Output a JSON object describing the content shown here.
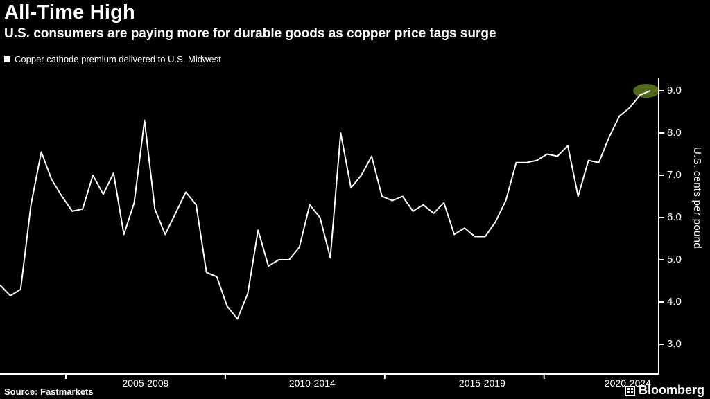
{
  "header": {
    "title": "All-Time High",
    "subtitle": "U.S. consumers are paying more for durable goods as copper price tags surge"
  },
  "legend": {
    "label": "Copper cathode premium delivered to U.S. Midwest"
  },
  "footer": {
    "source": "Source:  Fastmarkets",
    "brand": "Bloomberg"
  },
  "chart_data": {
    "type": "line",
    "title": "All-Time High",
    "subtitle": "U.S. consumers are paying more for durable goods as copper price tags surge",
    "ylabel": "U.S. cents per pound",
    "ylim": [
      3.0,
      9.0
    ],
    "grid": false,
    "legend_position": "top-left",
    "line_color": "#ffffff",
    "background": "#000000",
    "y_ticks": [
      {
        "label": "9.0",
        "value": 9.0
      },
      {
        "label": "8.0",
        "value": 8.0
      },
      {
        "label": "7.0",
        "value": 7.0
      },
      {
        "label": "6.0",
        "value": 6.0
      },
      {
        "label": "5.0",
        "value": 5.0
      },
      {
        "label": "4.0",
        "value": 4.0
      },
      {
        "label": "3.0",
        "value": 3.0
      }
    ],
    "x_ticks": [
      {
        "label": "2005-2009",
        "pos": 0.221
      },
      {
        "label": "2010-2014",
        "pos": 0.474
      },
      {
        "label": "2015-2019",
        "pos": 0.732
      },
      {
        "label": "2020-2024",
        "pos": 0.953
      }
    ],
    "x_boundary_ticks_pos": [
      0.1,
      0.342,
      0.584,
      0.826
    ],
    "series": [
      {
        "name": "Copper cathode premium delivered to U.S. Midwest",
        "values": [
          4.4,
          4.15,
          4.3,
          6.3,
          7.55,
          6.9,
          6.5,
          6.15,
          6.2,
          7.0,
          6.55,
          7.05,
          5.6,
          6.35,
          8.3,
          6.2,
          5.6,
          6.1,
          6.6,
          6.3,
          4.7,
          4.6,
          3.9,
          3.6,
          4.2,
          5.7,
          4.85,
          5.0,
          5.0,
          5.3,
          6.3,
          6.0,
          5.05,
          8.0,
          6.7,
          7.0,
          7.45,
          6.5,
          6.4,
          6.5,
          6.15,
          6.3,
          6.1,
          6.35,
          5.6,
          5.75,
          5.55,
          5.55,
          5.9,
          6.4,
          7.3,
          7.3,
          7.35,
          7.5,
          7.45,
          7.7,
          6.5,
          7.35,
          7.3,
          7.9,
          8.4,
          8.6,
          8.9,
          9.0
        ]
      }
    ],
    "highlight": {
      "note": "all-time high marker on last point",
      "value": 9.0,
      "color": "#566e1e"
    }
  }
}
